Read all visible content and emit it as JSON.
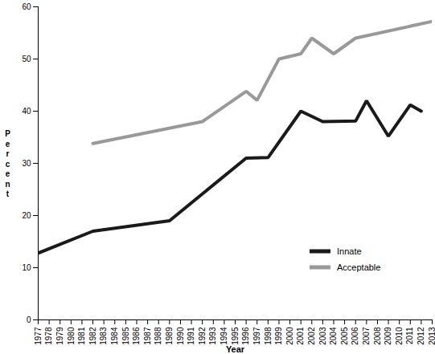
{
  "chart_data": {
    "type": "line",
    "x_label": "Year",
    "y_label": "Percent",
    "xlim": [
      1977,
      2013
    ],
    "xticks": [
      1977,
      1978,
      1979,
      1980,
      1981,
      1982,
      1983,
      1984,
      1985,
      1986,
      1987,
      1988,
      1989,
      1990,
      1991,
      1992,
      1993,
      1994,
      1995,
      1996,
      1997,
      1998,
      1999,
      2000,
      2001,
      2002,
      2003,
      2004,
      2005,
      2006,
      2007,
      2008,
      2009,
      2010,
      2011,
      2012,
      2013
    ],
    "ylim": [
      0,
      60
    ],
    "yticks": [
      0,
      10,
      20,
      30,
      40,
      50,
      60
    ],
    "grid": false,
    "legend": "bottom-right",
    "series": [
      {
        "name": "Innate",
        "color": "#1a1a1a",
        "x": [
          1977,
          1982,
          1989,
          1996,
          1998,
          2001,
          2003,
          2006,
          2007,
          2009,
          2011,
          2012
        ],
        "values": [
          12.8,
          17,
          19,
          31,
          31.1,
          40,
          38,
          38.1,
          42,
          35.2,
          41.2,
          40
        ]
      },
      {
        "name": "Acceptable",
        "color": "#999999",
        "x": [
          1982,
          1992,
          1996,
          1997,
          1999,
          2001,
          2002,
          2004,
          2006,
          2013
        ],
        "values": [
          33.8,
          38,
          43.8,
          42.1,
          50,
          51,
          54,
          51,
          54,
          57.2
        ]
      }
    ]
  }
}
